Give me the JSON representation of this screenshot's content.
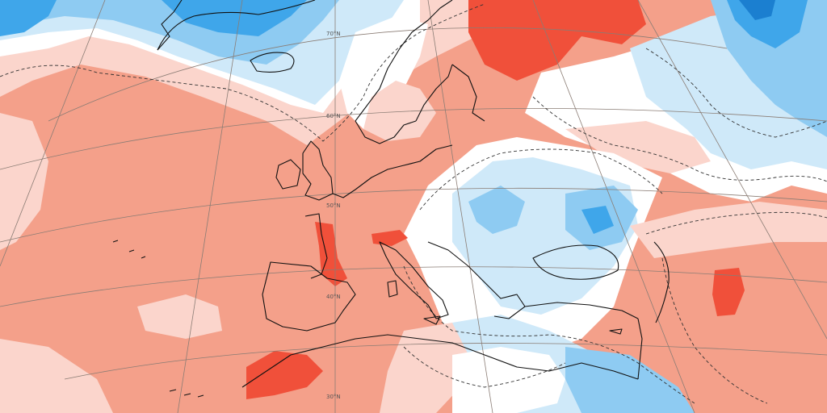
{
  "map": {
    "colors": {
      "strong_warm": "#f0503a",
      "warm": "#f4a08a",
      "light_warm": "#fbd5cc",
      "neutral": "#ffffff",
      "light_cool": "#cfe9f9",
      "cool": "#8ecbf2",
      "strong_cool": "#3fa6ea",
      "very_cool": "#1b7fd0",
      "coastline": "#111111",
      "graticule": "#8a7c74",
      "contour": "#333333"
    },
    "latitude_labels": [
      "70°N",
      "60°N",
      "50°N",
      "40°N",
      "30°N"
    ]
  }
}
